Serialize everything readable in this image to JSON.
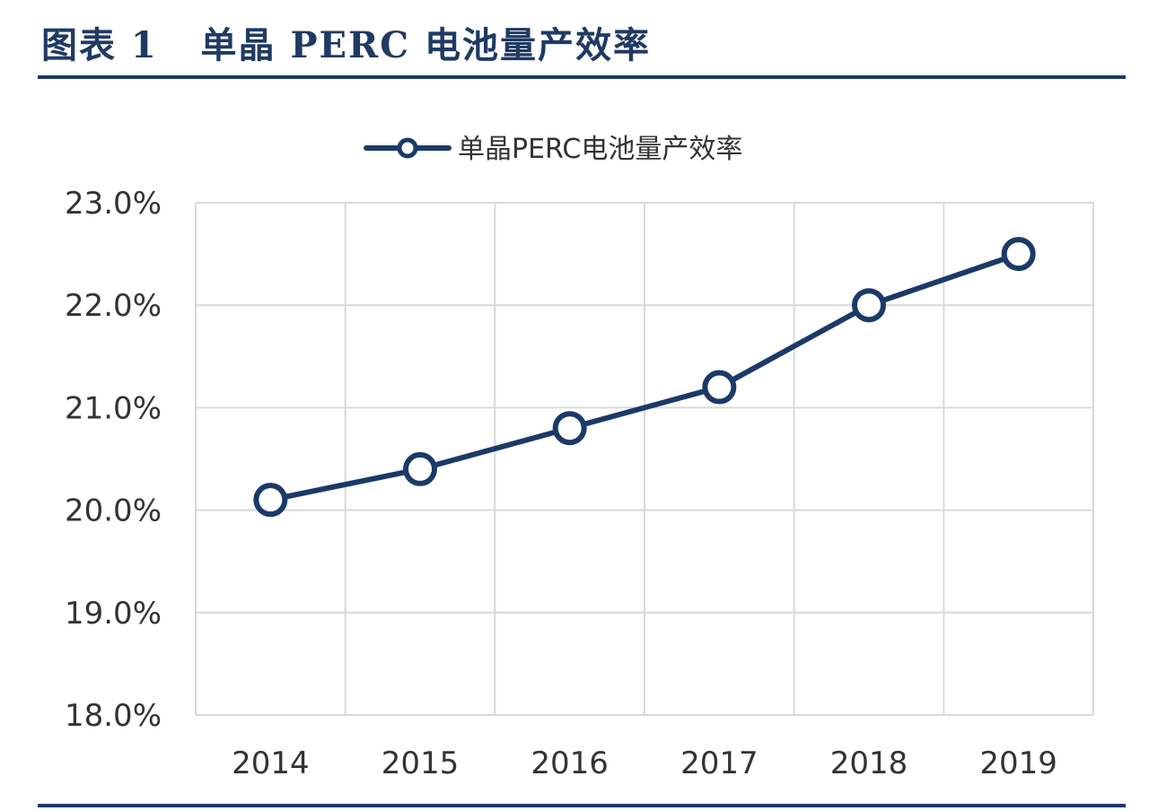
{
  "figure": {
    "title": "图表 1   单晶 PERC 电池量产效率"
  },
  "colors": {
    "title": "#1f3a63",
    "rule": "#1b3a68",
    "series": "#1b3a68",
    "grid": "#d9d9d9",
    "text": "#333333"
  },
  "chart_data": {
    "type": "line",
    "title": "",
    "xlabel": "",
    "ylabel": "",
    "categories": [
      "2014",
      "2015",
      "2016",
      "2017",
      "2018",
      "2019"
    ],
    "series": [
      {
        "name": "单晶PERC电池量产效率",
        "values": [
          20.1,
          20.4,
          20.8,
          21.2,
          22.0,
          22.5
        ],
        "marker": "hollow-circle"
      }
    ],
    "ylim": [
      18.0,
      23.0
    ],
    "yticks": [
      18.0,
      19.0,
      20.0,
      21.0,
      22.0,
      23.0
    ],
    "ytick_labels": [
      "18.0%",
      "19.0%",
      "20.0%",
      "21.0%",
      "22.0%",
      "23.0%"
    ],
    "grid": true,
    "legend_position": "top-center"
  }
}
